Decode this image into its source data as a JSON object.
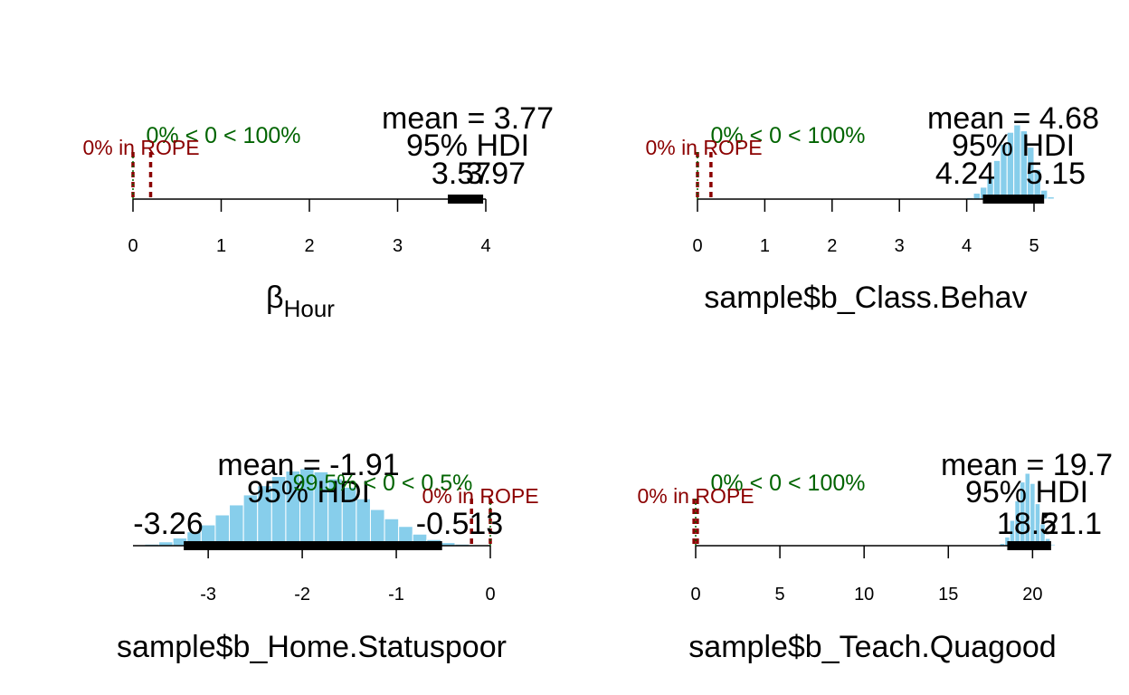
{
  "colors": {
    "hist_fill": "#87CEEB",
    "hist_edge": "#ffffff",
    "hdi_bar": "#000000",
    "rope_color": "#8B0000",
    "comp_color": "#006400",
    "axis": "#000000"
  },
  "chart_data": [
    {
      "type": "bar",
      "xlim": [
        0,
        4
      ],
      "xticks": [
        "0",
        "1",
        "2",
        "3",
        "4"
      ],
      "xlabel_symbol": "β",
      "xlabel_sub": "Hour",
      "mean_label": "mean = 3.77",
      "hdi_label": "95% HDI",
      "hdi_low": 3.57,
      "hdi_high": 3.97,
      "hdi_low_label": "3.57",
      "hdi_high_label": "3.97",
      "comp_label": "0% < 0 < 100%",
      "rope_label": "0% in ROPE",
      "comp_value": 0,
      "rope": [
        0,
        0.2
      ],
      "hist": {
        "bins": [],
        "densities": []
      }
    },
    {
      "type": "bar",
      "xlim": [
        0,
        5
      ],
      "xticks": [
        "0",
        "1",
        "2",
        "3",
        "4",
        "5"
      ],
      "xlabel": "sample$b_Class.Behav",
      "mean_label": "mean = 4.68",
      "hdi_label": "95% HDI",
      "hdi_low": 4.24,
      "hdi_high": 5.15,
      "hdi_low_label": "4.24",
      "hdi_high_label": "5.15",
      "comp_label": "0% < 0 < 100%",
      "rope_label": "0% in ROPE",
      "comp_value": 0,
      "rope": [
        0,
        0.2
      ],
      "hist": {
        "bins": [
          4.05,
          4.15,
          4.25,
          4.35,
          4.45,
          4.55,
          4.65,
          4.75,
          4.85,
          4.95,
          5.05,
          5.15,
          5.25
        ],
        "densities": [
          0.02,
          0.08,
          0.16,
          0.3,
          0.52,
          0.74,
          0.9,
          1.0,
          0.92,
          0.7,
          0.4,
          0.12,
          0.03
        ]
      }
    },
    {
      "type": "bar",
      "xlim": [
        -3.8,
        0
      ],
      "xticks": [
        "-3",
        "-2",
        "-1",
        "0"
      ],
      "xlabel": "sample$b_Home.Statuspoor",
      "mean_label": "mean = -1.91",
      "hdi_label": "95% HDI",
      "hdi_low": -3.26,
      "hdi_high": -0.513,
      "hdi_low_label": "-3.26",
      "hdi_high_label": "-0.513",
      "comp_label": "99.5% < 0 < 0.5%",
      "rope_label": "0% in ROPE",
      "comp_value": 0,
      "rope": [
        -0.2,
        0
      ],
      "hist": {
        "bins": [
          -3.75,
          -3.6,
          -3.45,
          -3.3,
          -3.15,
          -3.0,
          -2.85,
          -2.7,
          -2.55,
          -2.4,
          -2.25,
          -2.1,
          -1.95,
          -1.8,
          -1.65,
          -1.5,
          -1.35,
          -1.2,
          -1.05,
          -0.9,
          -0.75,
          -0.6,
          -0.45,
          -0.3,
          -0.15
        ],
        "densities": [
          0.01,
          0.02,
          0.05,
          0.1,
          0.18,
          0.27,
          0.4,
          0.53,
          0.66,
          0.78,
          0.9,
          0.97,
          1.0,
          0.96,
          0.87,
          0.76,
          0.61,
          0.47,
          0.35,
          0.25,
          0.15,
          0.08,
          0.04,
          0.02,
          0.01
        ]
      }
    },
    {
      "type": "bar",
      "xlim": [
        0,
        21
      ],
      "xticks": [
        "0",
        "5",
        "10",
        "15",
        "20"
      ],
      "xlabel": "sample$b_Teach.Quagood",
      "mean_label": "mean = 19.7",
      "hdi_label": "95% HDI",
      "hdi_low": 18.5,
      "hdi_high": 21.1,
      "hdi_low_label": "18.5",
      "hdi_high_label": "21.1",
      "comp_label": "0% < 0 < 100%",
      "rope_label": "0% in ROPE",
      "comp_value": 0,
      "rope": [
        -0.1,
        0.1
      ],
      "hist": {
        "bins": [
          18.2,
          18.5,
          18.8,
          19.1,
          19.4,
          19.7,
          20.0,
          20.3,
          20.6,
          20.9,
          21.2
        ],
        "densities": [
          0.03,
          0.12,
          0.35,
          0.62,
          0.88,
          1.0,
          0.86,
          0.58,
          0.3,
          0.1,
          0.02
        ]
      }
    }
  ]
}
